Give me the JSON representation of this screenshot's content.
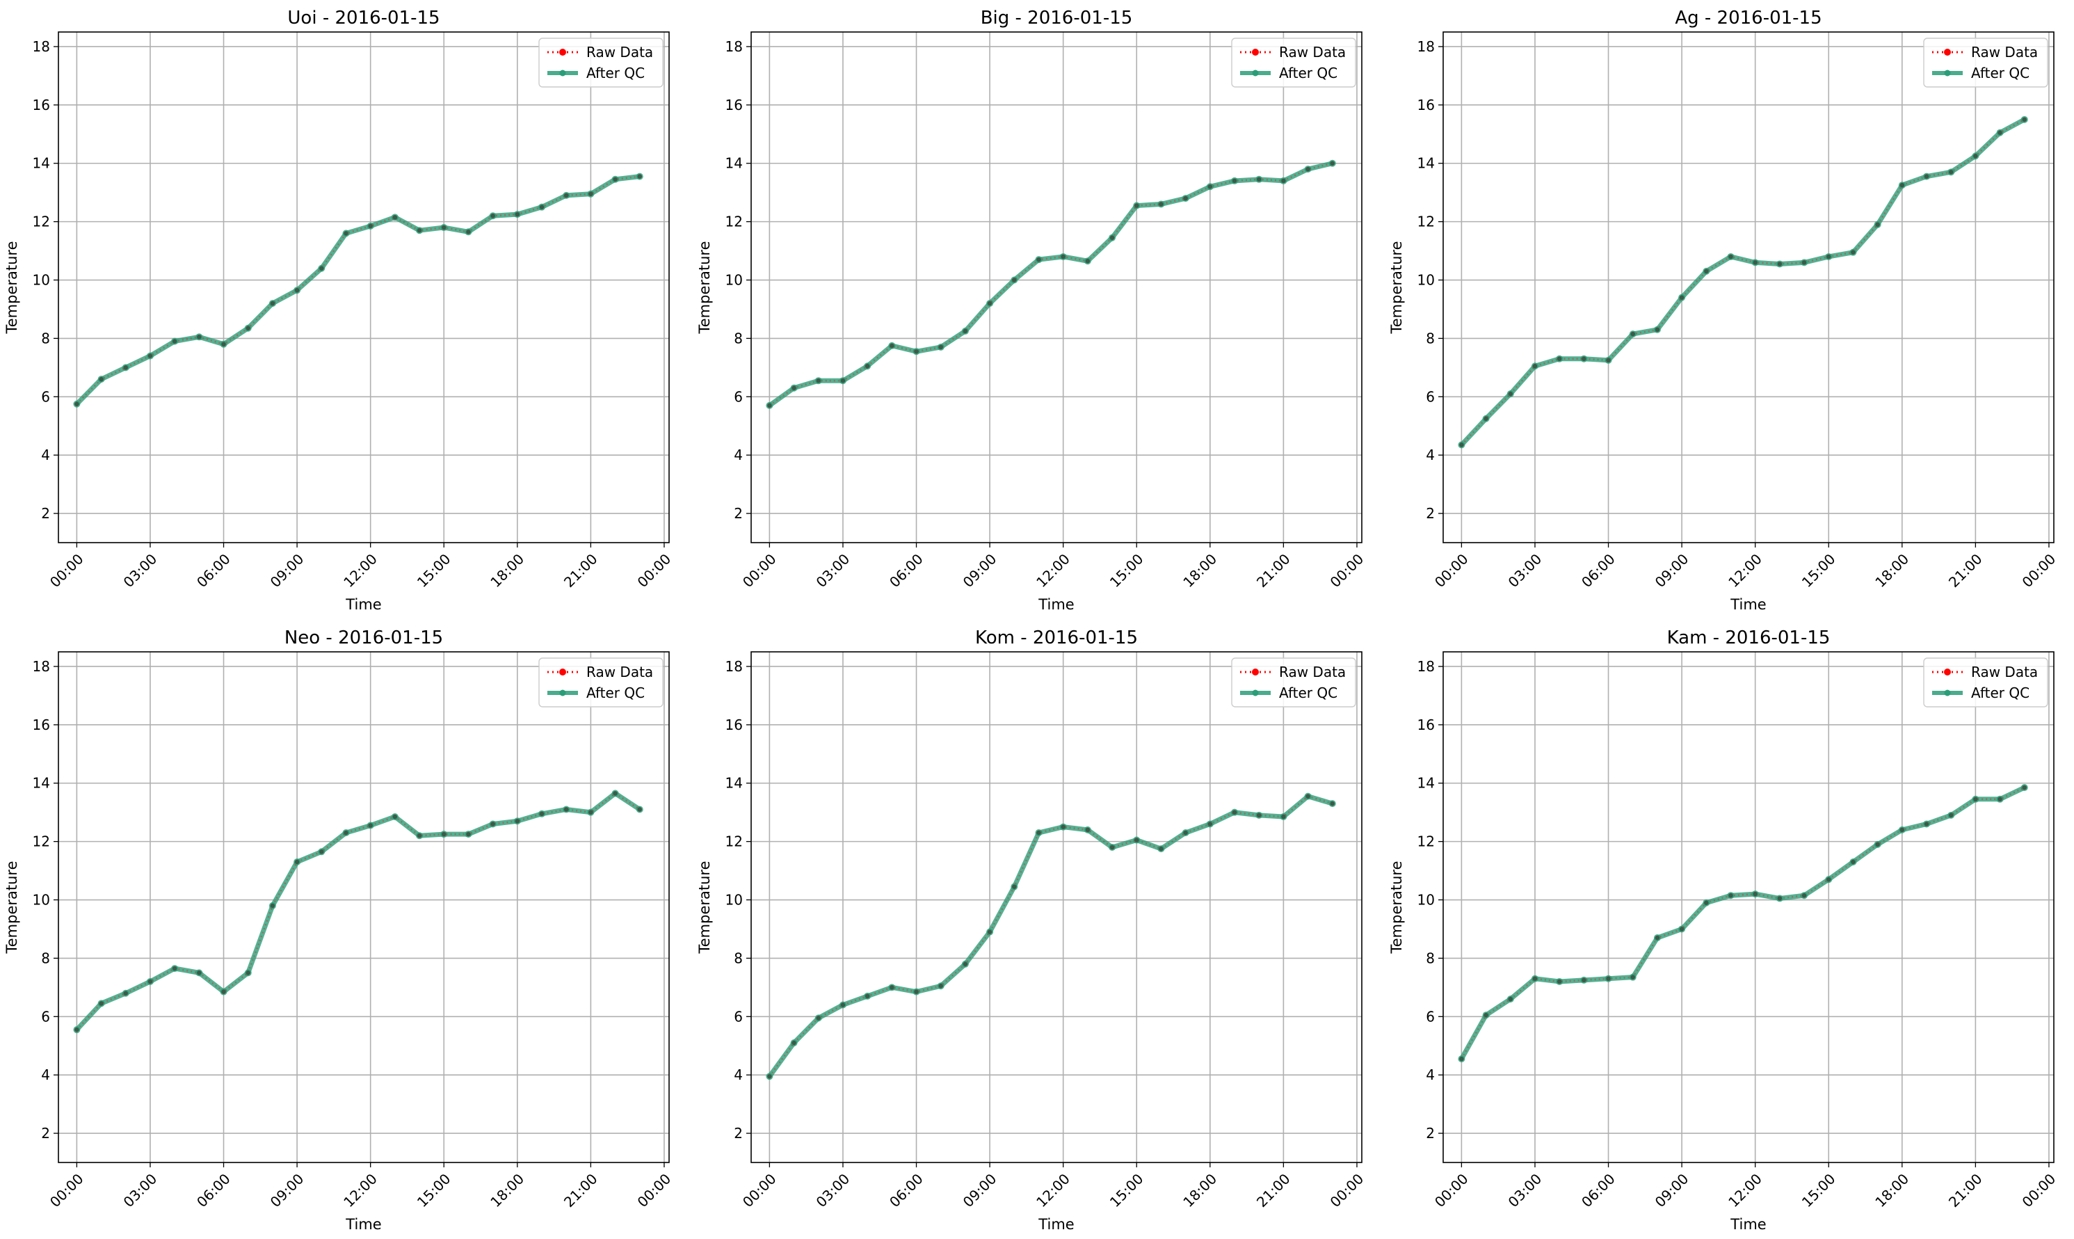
{
  "chart_data": [
    {
      "type": "line",
      "title": "Uoi - 2016-01-15",
      "xlabel": "Time",
      "ylabel": "Temperature",
      "ylim": [
        1,
        18.5
      ],
      "yticks": [
        2,
        4,
        6,
        8,
        10,
        12,
        14,
        16,
        18
      ],
      "xticks": [
        "00:00",
        "03:00",
        "06:00",
        "09:00",
        "12:00",
        "15:00",
        "18:00",
        "21:00",
        "00:00"
      ],
      "grid": true,
      "legend_position": "top-right",
      "x": [
        "00:00",
        "01:00",
        "02:00",
        "03:00",
        "04:00",
        "05:00",
        "06:00",
        "07:00",
        "08:00",
        "09:00",
        "10:00",
        "11:00",
        "12:00",
        "13:00",
        "14:00",
        "15:00",
        "16:00",
        "17:00",
        "18:00",
        "19:00",
        "20:00",
        "21:00",
        "22:00",
        "23:00"
      ],
      "series": [
        {
          "name": "Raw Data",
          "color": "#ff0000",
          "values": [
            5.75,
            6.6,
            7.0,
            7.4,
            7.9,
            8.05,
            7.8,
            8.35,
            9.2,
            9.65,
            10.4,
            11.6,
            11.85,
            12.15,
            11.7,
            11.8,
            11.65,
            12.2,
            12.25,
            12.5,
            12.9,
            12.95,
            13.45,
            13.55
          ]
        },
        {
          "name": "After QC",
          "color": "#2a9d78",
          "values": [
            5.75,
            6.6,
            7.0,
            7.4,
            7.9,
            8.05,
            7.8,
            8.35,
            9.2,
            9.65,
            10.4,
            11.6,
            11.85,
            12.15,
            11.7,
            11.8,
            11.65,
            12.2,
            12.25,
            12.5,
            12.9,
            12.95,
            13.45,
            13.55
          ]
        }
      ]
    },
    {
      "type": "line",
      "title": "Big - 2016-01-15",
      "xlabel": "Time",
      "ylabel": "Temperature",
      "ylim": [
        1,
        18.5
      ],
      "yticks": [
        2,
        4,
        6,
        8,
        10,
        12,
        14,
        16,
        18
      ],
      "xticks": [
        "00:00",
        "03:00",
        "06:00",
        "09:00",
        "12:00",
        "15:00",
        "18:00",
        "21:00",
        "00:00"
      ],
      "grid": true,
      "legend_position": "top-right",
      "x": [
        "00:00",
        "01:00",
        "02:00",
        "03:00",
        "04:00",
        "05:00",
        "06:00",
        "07:00",
        "08:00",
        "09:00",
        "10:00",
        "11:00",
        "12:00",
        "13:00",
        "14:00",
        "15:00",
        "16:00",
        "17:00",
        "18:00",
        "19:00",
        "20:00",
        "21:00",
        "22:00",
        "23:00"
      ],
      "series": [
        {
          "name": "Raw Data",
          "color": "#ff0000",
          "values": [
            5.7,
            6.3,
            6.55,
            6.55,
            7.05,
            7.75,
            7.55,
            7.7,
            8.25,
            9.2,
            10.0,
            10.7,
            10.8,
            10.65,
            11.45,
            12.55,
            12.6,
            12.8,
            13.2,
            13.4,
            13.45,
            13.4,
            13.8,
            14.0
          ]
        },
        {
          "name": "After QC",
          "color": "#2a9d78",
          "values": [
            5.7,
            6.3,
            6.55,
            6.55,
            7.05,
            7.75,
            7.55,
            7.7,
            8.25,
            9.2,
            10.0,
            10.7,
            10.8,
            10.65,
            11.45,
            12.55,
            12.6,
            12.8,
            13.2,
            13.4,
            13.45,
            13.4,
            13.8,
            14.0
          ]
        }
      ]
    },
    {
      "type": "line",
      "title": "Ag - 2016-01-15",
      "xlabel": "Time",
      "ylabel": "Temperature",
      "ylim": [
        1,
        18.5
      ],
      "yticks": [
        2,
        4,
        6,
        8,
        10,
        12,
        14,
        16,
        18
      ],
      "xticks": [
        "00:00",
        "03:00",
        "06:00",
        "09:00",
        "12:00",
        "15:00",
        "18:00",
        "21:00",
        "00:00"
      ],
      "grid": true,
      "legend_position": "top-right",
      "x": [
        "00:00",
        "01:00",
        "02:00",
        "03:00",
        "04:00",
        "05:00",
        "06:00",
        "07:00",
        "08:00",
        "09:00",
        "10:00",
        "11:00",
        "12:00",
        "13:00",
        "14:00",
        "15:00",
        "16:00",
        "17:00",
        "18:00",
        "19:00",
        "20:00",
        "21:00",
        "22:00",
        "23:00"
      ],
      "series": [
        {
          "name": "Raw Data",
          "color": "#ff0000",
          "values": [
            4.35,
            5.25,
            6.1,
            7.05,
            7.3,
            7.3,
            7.25,
            8.15,
            8.3,
            9.4,
            10.3,
            10.8,
            10.6,
            10.55,
            10.6,
            10.8,
            10.95,
            11.9,
            13.25,
            13.55,
            13.7,
            14.25,
            15.05,
            15.5
          ]
        },
        {
          "name": "After QC",
          "color": "#2a9d78",
          "values": [
            4.35,
            5.25,
            6.1,
            7.05,
            7.3,
            7.3,
            7.25,
            8.15,
            8.3,
            9.4,
            10.3,
            10.8,
            10.6,
            10.55,
            10.6,
            10.8,
            10.95,
            11.9,
            13.25,
            13.55,
            13.7,
            14.25,
            15.05,
            15.5
          ]
        }
      ]
    },
    {
      "type": "line",
      "title": "Neo - 2016-01-15",
      "xlabel": "Time",
      "ylabel": "Temperature",
      "ylim": [
        1,
        18.5
      ],
      "yticks": [
        2,
        4,
        6,
        8,
        10,
        12,
        14,
        16,
        18
      ],
      "xticks": [
        "00:00",
        "03:00",
        "06:00",
        "09:00",
        "12:00",
        "15:00",
        "18:00",
        "21:00",
        "00:00"
      ],
      "grid": true,
      "legend_position": "top-right",
      "x": [
        "00:00",
        "01:00",
        "02:00",
        "03:00",
        "04:00",
        "05:00",
        "06:00",
        "07:00",
        "08:00",
        "09:00",
        "10:00",
        "11:00",
        "12:00",
        "13:00",
        "14:00",
        "15:00",
        "16:00",
        "17:00",
        "18:00",
        "19:00",
        "20:00",
        "21:00",
        "22:00",
        "23:00"
      ],
      "series": [
        {
          "name": "Raw Data",
          "color": "#ff0000",
          "values": [
            5.55,
            6.45,
            6.8,
            7.2,
            7.65,
            7.5,
            6.85,
            7.5,
            9.8,
            11.3,
            11.65,
            12.3,
            12.55,
            12.85,
            12.2,
            12.25,
            12.25,
            12.6,
            12.7,
            12.95,
            13.1,
            13.0,
            13.65,
            13.1
          ]
        },
        {
          "name": "After QC",
          "color": "#2a9d78",
          "values": [
            5.55,
            6.45,
            6.8,
            7.2,
            7.65,
            7.5,
            6.85,
            7.5,
            9.8,
            11.3,
            11.65,
            12.3,
            12.55,
            12.85,
            12.2,
            12.25,
            12.25,
            12.6,
            12.7,
            12.95,
            13.1,
            13.0,
            13.65,
            13.1
          ]
        }
      ]
    },
    {
      "type": "line",
      "title": "Kom - 2016-01-15",
      "xlabel": "Time",
      "ylabel": "Temperature",
      "ylim": [
        1,
        18.5
      ],
      "yticks": [
        2,
        4,
        6,
        8,
        10,
        12,
        14,
        16,
        18
      ],
      "xticks": [
        "00:00",
        "03:00",
        "06:00",
        "09:00",
        "12:00",
        "15:00",
        "18:00",
        "21:00",
        "00:00"
      ],
      "grid": true,
      "legend_position": "top-right",
      "x": [
        "00:00",
        "01:00",
        "02:00",
        "03:00",
        "04:00",
        "05:00",
        "06:00",
        "07:00",
        "08:00",
        "09:00",
        "10:00",
        "11:00",
        "12:00",
        "13:00",
        "14:00",
        "15:00",
        "16:00",
        "17:00",
        "18:00",
        "19:00",
        "20:00",
        "21:00",
        "22:00",
        "23:00"
      ],
      "series": [
        {
          "name": "Raw Data",
          "color": "#ff0000",
          "values": [
            3.95,
            5.1,
            5.95,
            6.4,
            6.7,
            7.0,
            6.85,
            7.05,
            7.8,
            8.9,
            10.45,
            12.3,
            12.5,
            12.4,
            11.8,
            12.05,
            11.75,
            12.3,
            12.6,
            13.0,
            12.9,
            12.85,
            13.55,
            13.3
          ]
        },
        {
          "name": "After QC",
          "color": "#2a9d78",
          "values": [
            3.95,
            5.1,
            5.95,
            6.4,
            6.7,
            7.0,
            6.85,
            7.05,
            7.8,
            8.9,
            10.45,
            12.3,
            12.5,
            12.4,
            11.8,
            12.05,
            11.75,
            12.3,
            12.6,
            13.0,
            12.9,
            12.85,
            13.55,
            13.3
          ]
        }
      ]
    },
    {
      "type": "line",
      "title": "Kam - 2016-01-15",
      "xlabel": "Time",
      "ylabel": "Temperature",
      "ylim": [
        1,
        18.5
      ],
      "yticks": [
        2,
        4,
        6,
        8,
        10,
        12,
        14,
        16,
        18
      ],
      "xticks": [
        "00:00",
        "03:00",
        "06:00",
        "09:00",
        "12:00",
        "15:00",
        "18:00",
        "21:00",
        "00:00"
      ],
      "grid": true,
      "legend_position": "top-right",
      "x": [
        "00:00",
        "01:00",
        "02:00",
        "03:00",
        "04:00",
        "05:00",
        "06:00",
        "07:00",
        "08:00",
        "09:00",
        "10:00",
        "11:00",
        "12:00",
        "13:00",
        "14:00",
        "15:00",
        "16:00",
        "17:00",
        "18:00",
        "19:00",
        "20:00",
        "21:00",
        "22:00",
        "23:00"
      ],
      "series": [
        {
          "name": "Raw Data",
          "color": "#ff0000",
          "values": [
            4.55,
            6.05,
            6.6,
            7.3,
            7.2,
            7.25,
            7.3,
            7.35,
            8.7,
            9.0,
            9.9,
            10.15,
            10.2,
            10.05,
            10.15,
            10.7,
            11.3,
            11.9,
            12.4,
            12.6,
            12.9,
            13.45,
            13.45,
            13.85
          ]
        },
        {
          "name": "After QC",
          "color": "#2a9d78",
          "values": [
            4.55,
            6.05,
            6.6,
            7.3,
            7.2,
            7.25,
            7.3,
            7.35,
            8.7,
            9.0,
            9.9,
            10.15,
            10.2,
            10.05,
            10.15,
            10.7,
            11.3,
            11.9,
            12.4,
            12.6,
            12.9,
            13.45,
            13.45,
            13.85
          ]
        }
      ]
    }
  ]
}
